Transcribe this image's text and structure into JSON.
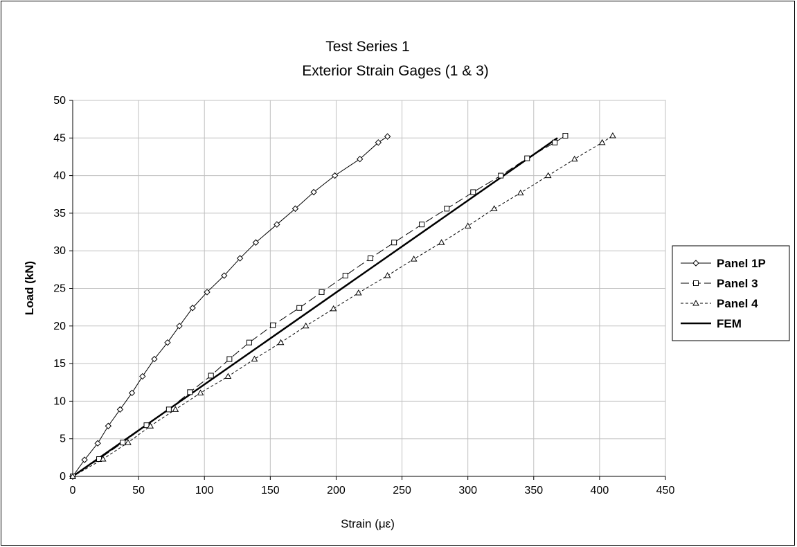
{
  "chart_data": {
    "type": "scatter",
    "title": "Test Series 1",
    "subtitle": "Exterior Strain Gages (1 & 3)",
    "xlabel": "Strain (με)",
    "ylabel": "Load (kN)",
    "xlim": [
      0,
      450
    ],
    "ylim": [
      0,
      50
    ],
    "xticks": [
      0,
      50,
      100,
      150,
      200,
      250,
      300,
      350,
      400,
      450
    ],
    "yticks": [
      0,
      5,
      10,
      15,
      20,
      25,
      30,
      35,
      40,
      45,
      50
    ],
    "grid": true,
    "legend_position": "right",
    "series": [
      {
        "name": "Panel 1P",
        "marker": "diamond",
        "line": "solid",
        "color": "#000000",
        "points": [
          [
            0,
            0
          ],
          [
            9,
            2.2
          ],
          [
            19,
            4.4
          ],
          [
            27,
            6.7
          ],
          [
            36,
            8.9
          ],
          [
            45,
            11.1
          ],
          [
            53,
            13.3
          ],
          [
            62,
            15.6
          ],
          [
            72,
            17.8
          ],
          [
            81,
            20.0
          ],
          [
            91,
            22.4
          ],
          [
            102,
            24.5
          ],
          [
            115,
            26.7
          ],
          [
            127,
            29.0
          ],
          [
            139,
            31.1
          ],
          [
            155,
            33.5
          ],
          [
            169,
            35.6
          ],
          [
            183,
            37.8
          ],
          [
            199,
            40.0
          ],
          [
            218,
            42.2
          ],
          [
            232,
            44.4
          ],
          [
            239,
            45.2
          ]
        ]
      },
      {
        "name": "Panel 3",
        "marker": "square",
        "line": "longdash",
        "color": "#000000",
        "points": [
          [
            0,
            0
          ],
          [
            20,
            2.3
          ],
          [
            38,
            4.5
          ],
          [
            56,
            6.8
          ],
          [
            73,
            8.9
          ],
          [
            89,
            11.2
          ],
          [
            105,
            13.4
          ],
          [
            119,
            15.6
          ],
          [
            134,
            17.8
          ],
          [
            152,
            20.1
          ],
          [
            172,
            22.4
          ],
          [
            189,
            24.5
          ],
          [
            207,
            26.7
          ],
          [
            226,
            29.0
          ],
          [
            244,
            31.1
          ],
          [
            265,
            33.5
          ],
          [
            284,
            35.6
          ],
          [
            304,
            37.8
          ],
          [
            325,
            40.0
          ],
          [
            345,
            42.3
          ],
          [
            366,
            44.4
          ],
          [
            374,
            45.3
          ]
        ]
      },
      {
        "name": "Panel 4",
        "marker": "triangle",
        "line": "dashed",
        "color": "#000000",
        "points": [
          [
            0,
            0
          ],
          [
            23,
            2.3
          ],
          [
            42,
            4.5
          ],
          [
            59,
            6.7
          ],
          [
            78,
            8.9
          ],
          [
            97,
            11.1
          ],
          [
            118,
            13.3
          ],
          [
            138,
            15.6
          ],
          [
            158,
            17.8
          ],
          [
            177,
            20.0
          ],
          [
            198,
            22.3
          ],
          [
            217,
            24.4
          ],
          [
            239,
            26.7
          ],
          [
            259,
            28.9
          ],
          [
            280,
            31.1
          ],
          [
            300,
            33.3
          ],
          [
            320,
            35.6
          ],
          [
            340,
            37.7
          ],
          [
            361,
            40.0
          ],
          [
            381,
            42.2
          ],
          [
            402,
            44.4
          ],
          [
            410,
            45.3
          ]
        ]
      },
      {
        "name": "FEM",
        "marker": "none",
        "line": "bold",
        "color": "#000000",
        "points": [
          [
            0,
            0
          ],
          [
            368,
            45.0
          ]
        ]
      }
    ]
  }
}
